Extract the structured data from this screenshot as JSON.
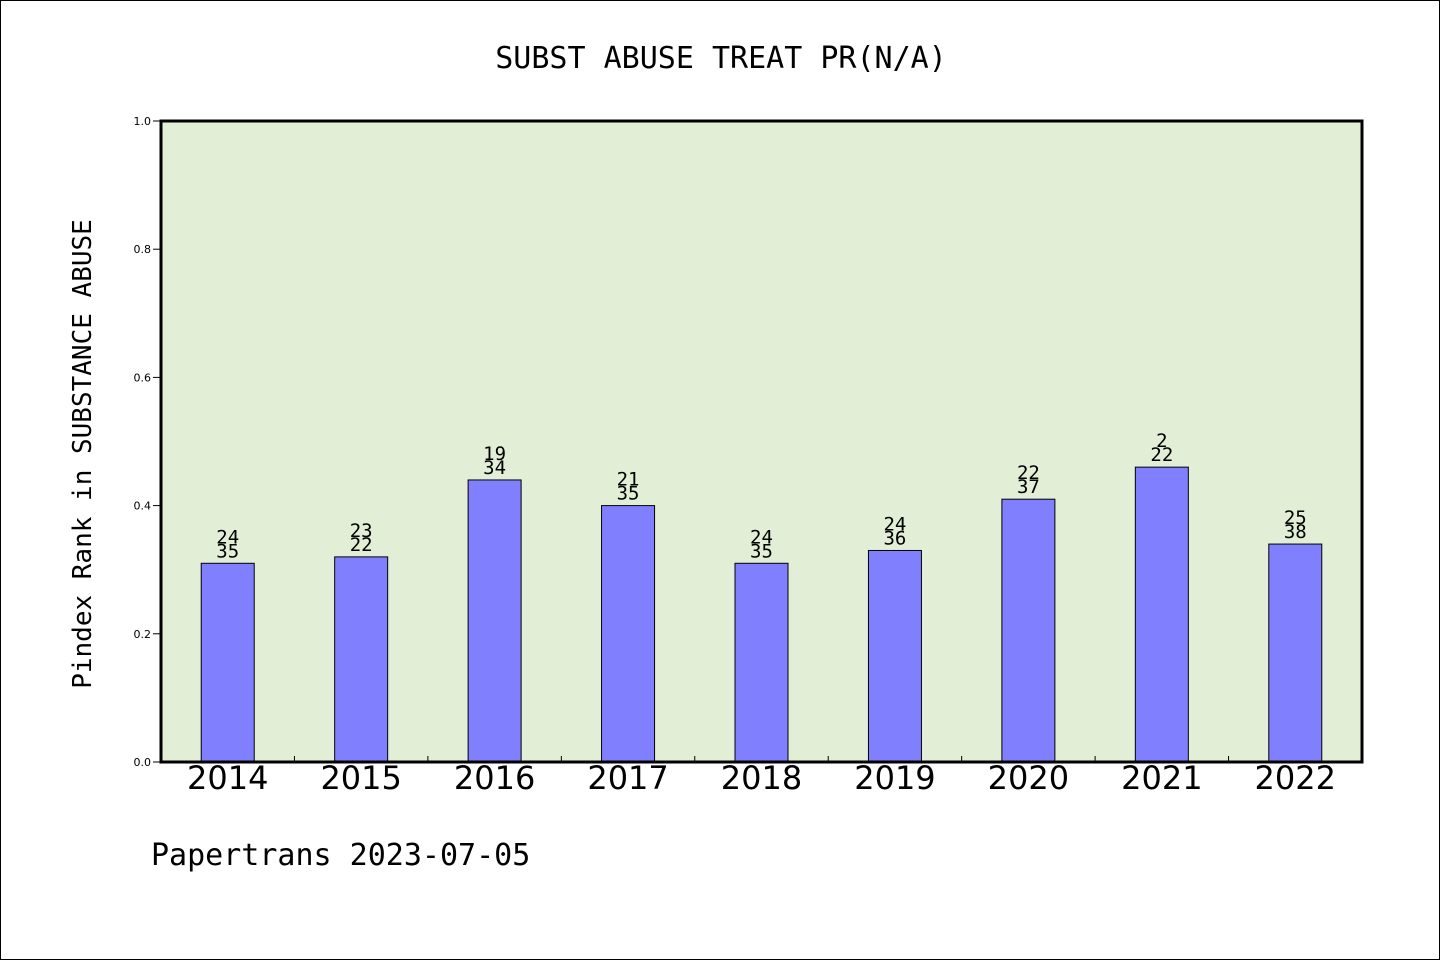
{
  "chart_data": {
    "type": "bar",
    "title": "SUBST ABUSE TREAT PR(N/A)",
    "ylabel": "Pindex Rank in SUBSTANCE ABUSE",
    "xlabel": "",
    "footer": "Papertrans 2023-07-05",
    "categories": [
      "2014",
      "2015",
      "2016",
      "2017",
      "2018",
      "2019",
      "2020",
      "2021",
      "2022"
    ],
    "values": [
      0.31,
      0.32,
      0.44,
      0.4,
      0.31,
      0.33,
      0.41,
      0.46,
      0.34
    ],
    "labels_top": [
      "24",
      "23",
      "19",
      "21",
      "24",
      "24",
      "22",
      "2",
      "25"
    ],
    "labels_bottom": [
      "35",
      "22",
      "34",
      "35",
      "35",
      "36",
      "37",
      "22",
      "38"
    ],
    "ylim": [
      0,
      1.0
    ],
    "yticks": [
      "0.0",
      "0.2",
      "0.4",
      "0.6",
      "0.8",
      "1.0"
    ],
    "grid": false,
    "colors": {
      "plot_background": "#e2efd6",
      "bar_fill": "#8080ff",
      "bar_stroke": "#000000",
      "axis": "#000000"
    }
  }
}
